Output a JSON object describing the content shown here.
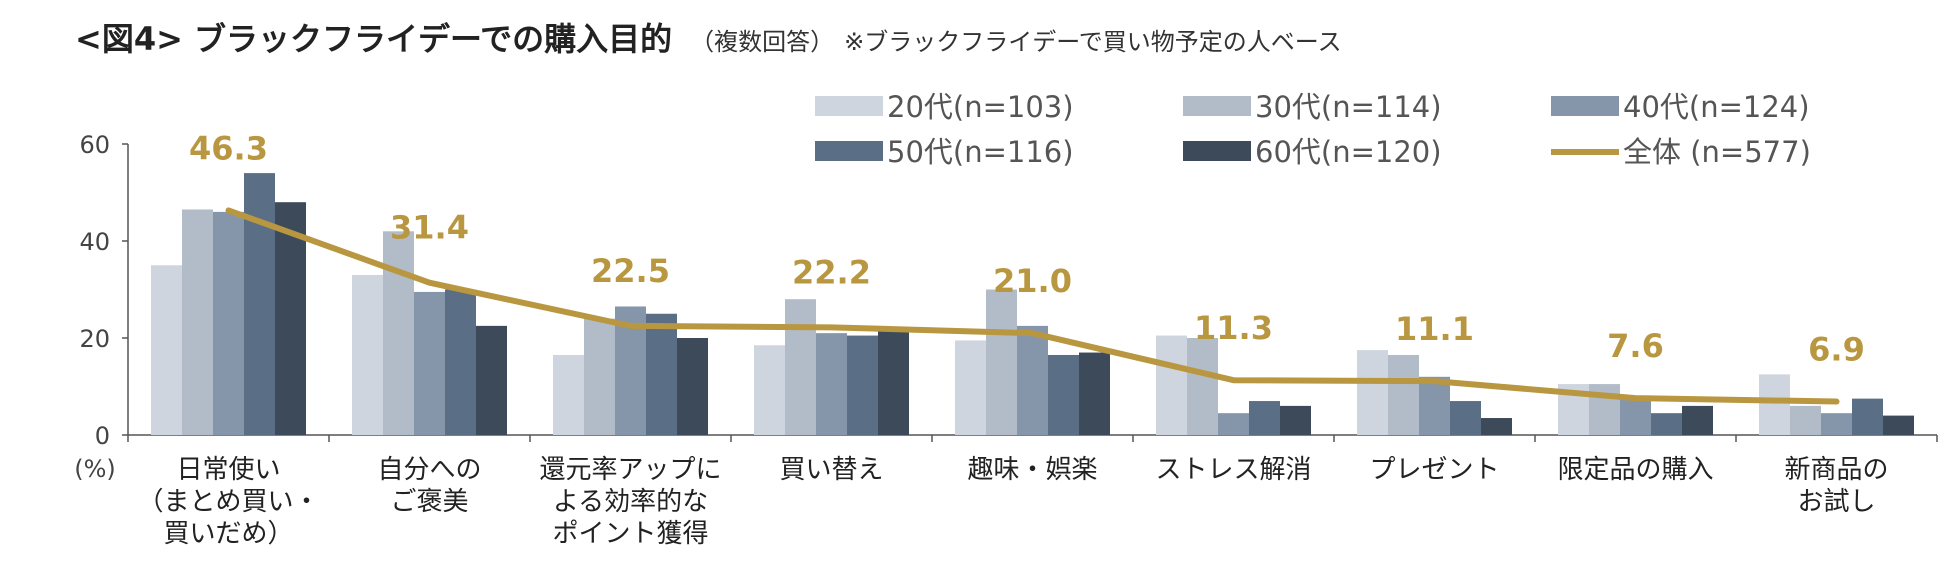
{
  "title": {
    "main": "<図4> ブラックフライデーでの購入目的",
    "sub": "（複数回答）",
    "note": "※ブラックフライデーで買い物予定の人ベース"
  },
  "colors": {
    "series": [
      "#CED5DE",
      "#B2BCC8",
      "#8596AA",
      "#5A6E86",
      "#3C4A5A"
    ],
    "total": "#B99740",
    "axis": "#555555"
  },
  "chart_data": {
    "type": "bar",
    "title": "<図4> ブラックフライデーでの購入目的",
    "ylabel": "(%)",
    "xlabel": "",
    "ylim": [
      0,
      60
    ],
    "yticks": [
      "0",
      "20",
      "40",
      "60"
    ],
    "grid": false,
    "legend_position": "top-right",
    "categories": [
      [
        "日常使い",
        "（まとめ買い・",
        "買いだめ）"
      ],
      [
        "自分への",
        "ご褒美"
      ],
      [
        "還元率アップに",
        "よる効率的な",
        "ポイント獲得"
      ],
      [
        "買い替え"
      ],
      [
        "趣味・娯楽"
      ],
      [
        "ストレス解消"
      ],
      [
        "プレゼント"
      ],
      [
        "限定品の購入"
      ],
      [
        "新商品の",
        "お試し"
      ]
    ],
    "series": [
      {
        "name": "20代(n=103)",
        "values": [
          35.0,
          33.0,
          16.5,
          18.5,
          19.5,
          20.5,
          17.5,
          10.5,
          12.5
        ]
      },
      {
        "name": "30代(n=114)",
        "values": [
          46.5,
          42.0,
          24.0,
          28.0,
          30.0,
          20.0,
          16.5,
          10.5,
          6.0
        ]
      },
      {
        "name": "40代(n=124)",
        "values": [
          46.0,
          29.5,
          26.5,
          21.0,
          22.5,
          4.5,
          12.0,
          7.5,
          4.5
        ]
      },
      {
        "name": "50代(n=116)",
        "values": [
          54.0,
          30.0,
          25.0,
          20.5,
          16.5,
          7.0,
          7.0,
          4.5,
          7.5
        ]
      },
      {
        "name": "60代(n=120)",
        "values": [
          48.0,
          22.5,
          20.0,
          21.5,
          17.0,
          6.0,
          3.5,
          6.0,
          4.0
        ]
      }
    ],
    "total": {
      "name": "全体 (n=577)",
      "values": [
        46.3,
        31.4,
        22.5,
        22.2,
        21.0,
        11.3,
        11.1,
        7.6,
        6.9
      ],
      "labels": [
        "46.3",
        "31.4",
        "22.5",
        "22.2",
        "21.0",
        "11.3",
        "11.1",
        "7.6",
        "6.9"
      ]
    }
  }
}
